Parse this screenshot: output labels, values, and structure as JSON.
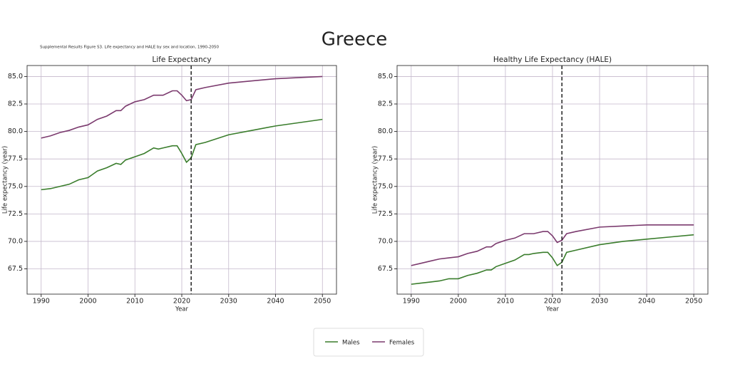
{
  "title": "Greece",
  "caption": "Supplemental Results Figure S3. Life expectancy and HALE by sex and location, 1990-2050",
  "legend_position": "bottom center",
  "chart_data": [
    {
      "type": "line",
      "title": "Life Expectancy",
      "x_label": "Year",
      "y_label": "Life expectancy (year)",
      "x": [
        1990,
        1992,
        1994,
        1996,
        1998,
        2000,
        2002,
        2004,
        2006,
        2007,
        2008,
        2010,
        2012,
        2014,
        2015,
        2016,
        2018,
        2019,
        2020,
        2021,
        2022,
        2023,
        2025,
        2030,
        2035,
        2040,
        2045,
        2050
      ],
      "series": [
        {
          "name": "Males",
          "color": "#3a7d2c",
          "values": [
            74.7,
            74.8,
            75.0,
            75.2,
            75.6,
            75.8,
            76.4,
            76.7,
            77.1,
            77.0,
            77.4,
            77.7,
            78.0,
            78.5,
            78.4,
            78.5,
            78.7,
            78.7,
            78.0,
            77.2,
            77.6,
            78.8,
            79.0,
            79.7,
            80.1,
            80.5,
            80.8,
            81.1
          ]
        },
        {
          "name": "Females",
          "color": "#7b3a6e",
          "values": [
            79.4,
            79.6,
            79.9,
            80.1,
            80.4,
            80.6,
            81.1,
            81.4,
            81.9,
            81.9,
            82.3,
            82.7,
            82.9,
            83.3,
            83.3,
            83.3,
            83.7,
            83.7,
            83.3,
            82.8,
            82.9,
            83.8,
            84.0,
            84.4,
            84.6,
            84.8,
            84.9,
            85.0
          ]
        }
      ],
      "xlim": [
        1987,
        2053
      ],
      "ylim": [
        65.2,
        86.0
      ],
      "xticks": [
        1990,
        2000,
        2010,
        2020,
        2030,
        2040,
        2050
      ],
      "yticks": [
        {
          "value": 67.5,
          "label": "67.5"
        },
        {
          "value": 70,
          "label": "70.0"
        },
        {
          "value": 72.5,
          "label": "72.5"
        },
        {
          "value": 75,
          "label": "75.0"
        },
        {
          "value": 77.5,
          "label": "77.5"
        },
        {
          "value": 80,
          "label": "80.0"
        },
        {
          "value": 82.5,
          "label": "82.5"
        },
        {
          "value": 85,
          "label": "85.0"
        }
      ],
      "grid": true,
      "vline": 2022
    },
    {
      "type": "line",
      "title": "Healthy Life Expectancy (HALE)",
      "x_label": "Year",
      "y_label": "Life expectancy (year)",
      "x": [
        1990,
        1992,
        1994,
        1996,
        1998,
        2000,
        2002,
        2004,
        2006,
        2007,
        2008,
        2010,
        2012,
        2014,
        2015,
        2016,
        2018,
        2019,
        2020,
        2021,
        2022,
        2023,
        2025,
        2030,
        2035,
        2040,
        2045,
        2050
      ],
      "series": [
        {
          "name": "Males",
          "color": "#3a7d2c",
          "values": [
            66.1,
            66.2,
            66.3,
            66.4,
            66.6,
            66.6,
            66.9,
            67.1,
            67.4,
            67.4,
            67.7,
            68.0,
            68.3,
            68.8,
            68.8,
            68.9,
            69.0,
            69.0,
            68.5,
            67.8,
            68.1,
            69.0,
            69.2,
            69.7,
            70.0,
            70.2,
            70.4,
            70.6
          ]
        },
        {
          "name": "Females",
          "color": "#7b3a6e",
          "values": [
            67.8,
            68.0,
            68.2,
            68.4,
            68.5,
            68.6,
            68.9,
            69.1,
            69.5,
            69.5,
            69.8,
            70.1,
            70.3,
            70.7,
            70.7,
            70.7,
            70.9,
            70.9,
            70.5,
            69.9,
            70.1,
            70.7,
            70.9,
            71.3,
            71.4,
            71.5,
            71.5,
            71.5
          ]
        }
      ],
      "xlim": [
        1987,
        2053
      ],
      "ylim": [
        65.2,
        86.0
      ],
      "xticks": [
        1990,
        2000,
        2010,
        2020,
        2030,
        2040,
        2050
      ],
      "yticks": [
        {
          "value": 67.5,
          "label": "67.5"
        },
        {
          "value": 70,
          "label": "70.0"
        },
        {
          "value": 72.5,
          "label": "72.5"
        },
        {
          "value": 75,
          "label": "75.0"
        },
        {
          "value": 77.5,
          "label": "77.5"
        },
        {
          "value": 80,
          "label": "80.0"
        },
        {
          "value": 82.5,
          "label": "82.5"
        },
        {
          "value": 85,
          "label": "85.0"
        }
      ],
      "grid": true,
      "vline": 2022
    }
  ]
}
